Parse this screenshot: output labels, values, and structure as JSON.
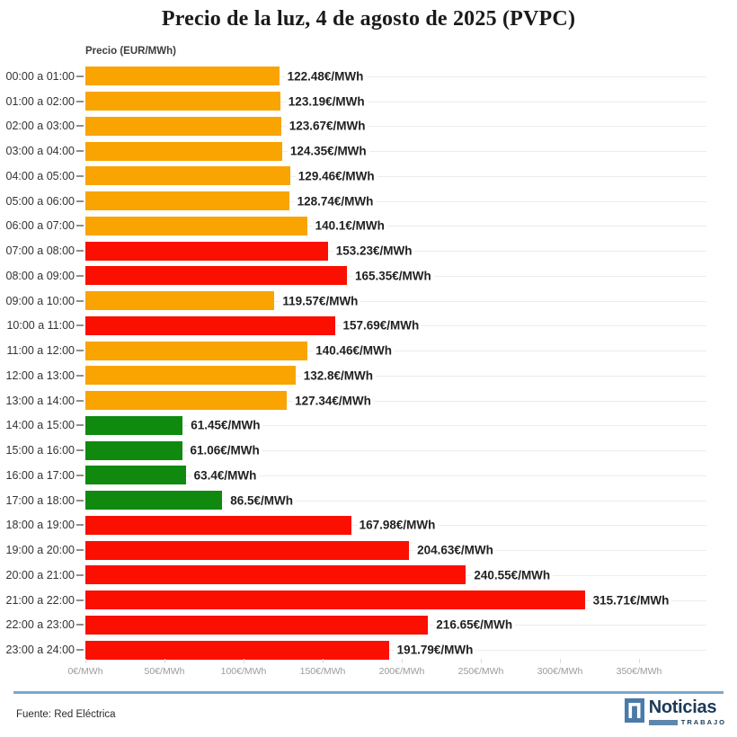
{
  "title": "Precio de la luz, 4 de agosto de 2025 (PVPC)",
  "axis_title": "Precio (EUR/MWh)",
  "colors": {
    "orange": "#F9A401",
    "red": "#FA0F00",
    "green": "#0F8A0F",
    "gridline": "#ECECEC",
    "divider_blue": "#7BA7CB",
    "logo_navy": "#1C3A57",
    "logo_blue": "#4A7BA8"
  },
  "chart_data": {
    "type": "bar",
    "orientation": "horizontal",
    "title": "Precio de la luz, 4 de agosto de 2025 (PVPC)",
    "xlabel": "Precio (EUR/MWh)",
    "xlim": [
      0,
      350
    ],
    "grid": true,
    "x_tick_values": [
      0,
      50,
      100,
      150,
      200,
      250,
      300,
      350
    ],
    "x_tick_labels": [
      "0€/MWh",
      "50€/MWh",
      "100€/MWh",
      "150€/MWh",
      "200€/MWh",
      "250€/MWh",
      "300€/MWh",
      "350€/MWh"
    ],
    "categories": [
      "00:00 a 01:00",
      "01:00 a 02:00",
      "02:00 a 03:00",
      "03:00 a 04:00",
      "04:00 a 05:00",
      "05:00 a 06:00",
      "06:00 a 07:00",
      "07:00 a 08:00",
      "08:00 a 09:00",
      "09:00 a 10:00",
      "10:00 a 11:00",
      "11:00 a 12:00",
      "12:00 a 13:00",
      "13:00 a 14:00",
      "14:00 a 15:00",
      "15:00 a 16:00",
      "16:00 a 17:00",
      "17:00 a 18:00",
      "18:00 a 19:00",
      "19:00 a 20:00",
      "20:00 a 21:00",
      "21:00 a 22:00",
      "22:00 a 23:00",
      "23:00 a 24:00"
    ],
    "values": [
      122.48,
      123.19,
      123.67,
      124.35,
      129.46,
      128.74,
      140.1,
      153.23,
      165.35,
      119.57,
      157.69,
      140.46,
      132.8,
      127.34,
      61.45,
      61.06,
      63.4,
      86.5,
      167.98,
      204.63,
      240.55,
      315.71,
      216.65,
      191.79
    ],
    "value_labels": [
      "122.48€/MWh",
      "123.19€/MWh",
      "123.67€/MWh",
      "124.35€/MWh",
      "129.46€/MWh",
      "128.74€/MWh",
      "140.1€/MWh",
      "153.23€/MWh",
      "165.35€/MWh",
      "119.57€/MWh",
      "157.69€/MWh",
      "140.46€/MWh",
      "132.8€/MWh",
      "127.34€/MWh",
      "61.45€/MWh",
      "61.06€/MWh",
      "63.4€/MWh",
      "86.5€/MWh",
      "167.98€/MWh",
      "204.63€/MWh",
      "240.55€/MWh",
      "315.71€/MWh",
      "216.65€/MWh",
      "191.79€/MWh"
    ],
    "bar_colors": [
      "orange",
      "orange",
      "orange",
      "orange",
      "orange",
      "orange",
      "orange",
      "red",
      "red",
      "orange",
      "red",
      "orange",
      "orange",
      "orange",
      "green",
      "green",
      "green",
      "green",
      "red",
      "red",
      "red",
      "red",
      "red",
      "red"
    ]
  },
  "footer": {
    "source": "Fuente: Red Eléctrica",
    "logo_name": "Noticias",
    "logo_sub": "TRABAJO"
  }
}
